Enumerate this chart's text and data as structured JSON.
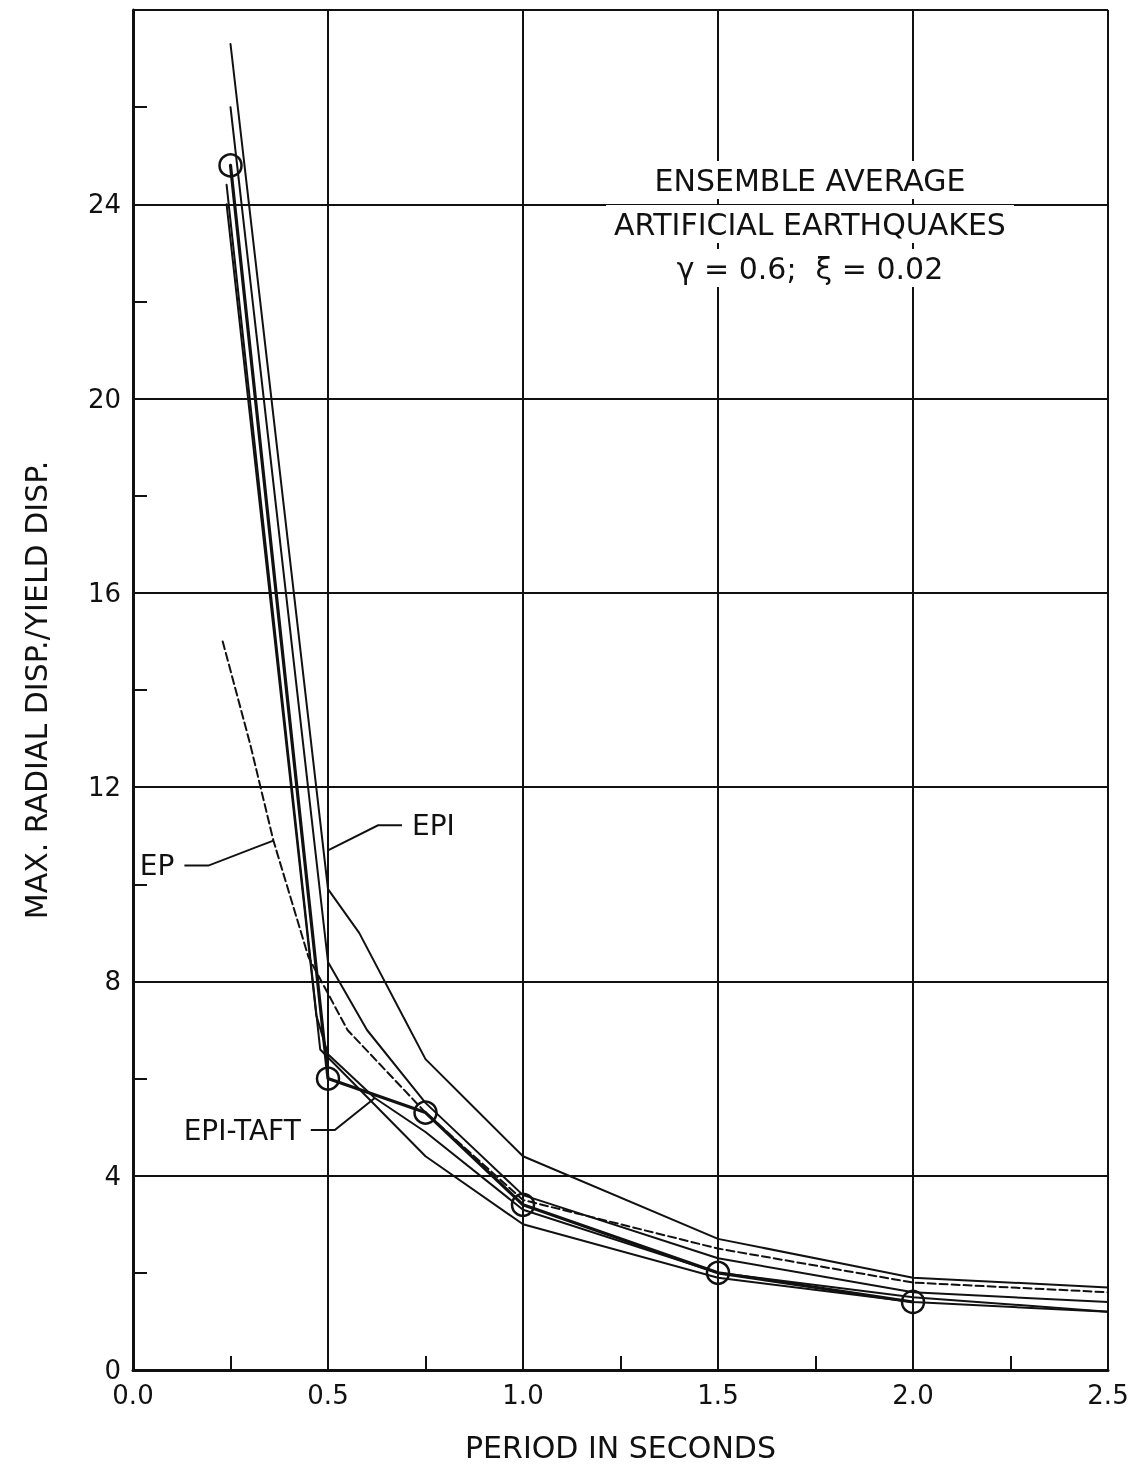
{
  "chart_data": {
    "type": "line",
    "title": "ENSEMBLE AVERAGE",
    "subtitle": "ARTIFICIAL EARTHQUAKES",
    "xlabel": "PERIOD IN SECONDS",
    "ylabel": "MAX. RADIAL DISP./YIELD DISP.",
    "annotations": [
      "γ = 0.6;  ξ = 0.02",
      {
        "text": "EP",
        "x": 0.36,
        "y": 10.9
      },
      {
        "text": "EPI",
        "x": 0.5,
        "y": 10.7
      },
      {
        "text": "EPI-TAFT",
        "x": 0.62,
        "y": 5.6
      }
    ],
    "xlim": [
      0,
      2.5
    ],
    "ylim": [
      0,
      28
    ],
    "xticks": [
      {
        "value": 0,
        "label": "0.0"
      },
      {
        "value": 0.25,
        "label": null
      },
      {
        "value": 0.5,
        "label": "0.5"
      },
      {
        "value": 0.75,
        "label": null
      },
      {
        "value": 1,
        "label": "1.0"
      },
      {
        "value": 1.25,
        "label": null
      },
      {
        "value": 1.5,
        "label": "1.5"
      },
      {
        "value": 1.75,
        "label": null
      },
      {
        "value": 2,
        "label": "2.0"
      },
      {
        "value": 2.25,
        "label": null
      },
      {
        "value": 2.5,
        "label": "2.5"
      }
    ],
    "yticks": [
      0,
      {
        "value": 2,
        "label": null
      },
      4,
      {
        "value": 6,
        "label": null
      },
      8,
      {
        "value": 10,
        "label": null
      },
      12,
      {
        "value": 14,
        "label": null
      },
      16,
      {
        "value": 18,
        "label": null
      },
      20,
      {
        "value": 22,
        "label": null
      },
      24,
      {
        "value": 26,
        "label": null
      }
    ],
    "grid": true,
    "series": [
      {
        "color": "#111111",
        "x": [
          0.25,
          0.5,
          0.58,
          0.75,
          0.875,
          1.0,
          1.5,
          2.0,
          2.5
        ],
        "values": [
          27.3,
          9.9,
          9.0,
          6.4,
          5.4,
          4.4,
          2.7,
          1.9,
          1.7
        ],
        "marker": "none",
        "line_style": "solid"
      },
      {
        "color": "#111111",
        "x": [
          0.24,
          0.48,
          0.75,
          1.0,
          1.5,
          2.0,
          2.5
        ],
        "values": [
          24.4,
          6.6,
          4.4,
          3.0,
          1.9,
          1.4,
          1.2
        ],
        "marker": "none",
        "line_style": "solid"
      },
      {
        "color": "#111111",
        "x": [
          0.25,
          0.5,
          0.75,
          1.0,
          1.5,
          2.0
        ],
        "values": [
          24.8,
          6.0,
          5.3,
          3.4,
          2.0,
          1.4
        ],
        "marker": "circle",
        "line_style": "solid"
      },
      {
        "color": "#111111",
        "x": [
          0.23,
          0.3,
          0.36,
          0.45,
          0.55,
          0.75,
          1.0,
          1.25,
          1.5,
          2.0,
          2.5
        ],
        "values": [
          15.0,
          12.9,
          10.9,
          8.5,
          7.0,
          5.3,
          3.5,
          3.0,
          2.5,
          1.8,
          1.6
        ],
        "marker": "none",
        "line_style": "dashed"
      },
      {
        "color": "#111111",
        "x": [
          0.25,
          0.5,
          0.6,
          0.75,
          1.0,
          1.5,
          2.0,
          2.5
        ],
        "values": [
          26.0,
          8.4,
          7.0,
          5.5,
          3.6,
          2.3,
          1.6,
          1.4
        ],
        "marker": "none",
        "line_style": "solid"
      },
      {
        "color": "#111111",
        "x": [
          0.24,
          0.47,
          0.5,
          0.62,
          0.75,
          1.0,
          1.5,
          2.0,
          2.5
        ],
        "values": [
          24.0,
          7.3,
          6.5,
          5.6,
          4.9,
          3.3,
          2.0,
          1.5,
          1.2
        ],
        "marker": "none",
        "line_style": "solid"
      }
    ]
  }
}
